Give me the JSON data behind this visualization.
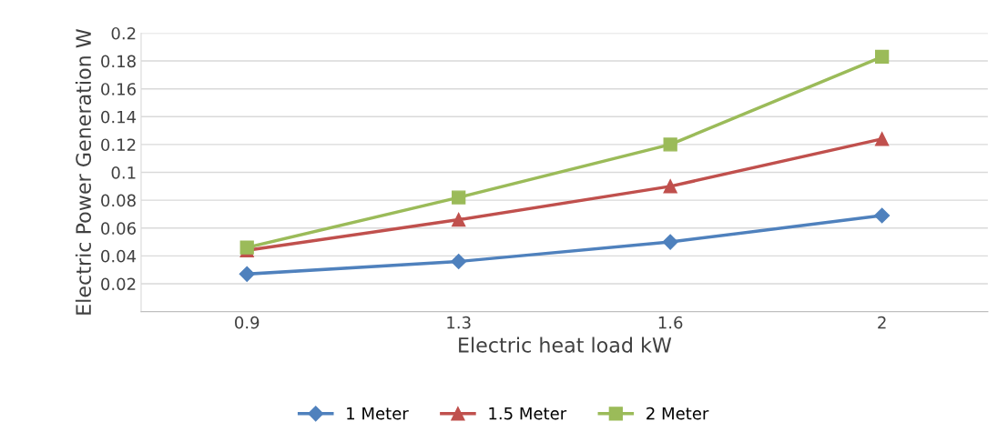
{
  "chart_data": {
    "type": "line",
    "xlabel": "Electric heat load kW",
    "ylabel": "Electric Power Generation W",
    "categories": [
      "0.9",
      "1.3",
      "1.6",
      "2"
    ],
    "series": [
      {
        "name": "1 Meter",
        "color": "#4f81bd",
        "marker": "diamond",
        "values": [
          0.027,
          0.036,
          0.05,
          0.069
        ]
      },
      {
        "name": "1.5 Meter",
        "color": "#c0504d",
        "marker": "triangle",
        "values": [
          0.044,
          0.066,
          0.09,
          0.124
        ]
      },
      {
        "name": "2 Meter",
        "color": "#9bbb59",
        "marker": "square",
        "values": [
          0.046,
          0.082,
          0.12,
          0.183
        ]
      }
    ],
    "ylim": [
      0,
      0.2
    ],
    "yticks": [
      0.02,
      0.04,
      0.06,
      0.08,
      0.1,
      0.12,
      0.14,
      0.16,
      0.18,
      0.2
    ],
    "grid": "y",
    "legend": "bottom",
    "line_style": "solid"
  }
}
